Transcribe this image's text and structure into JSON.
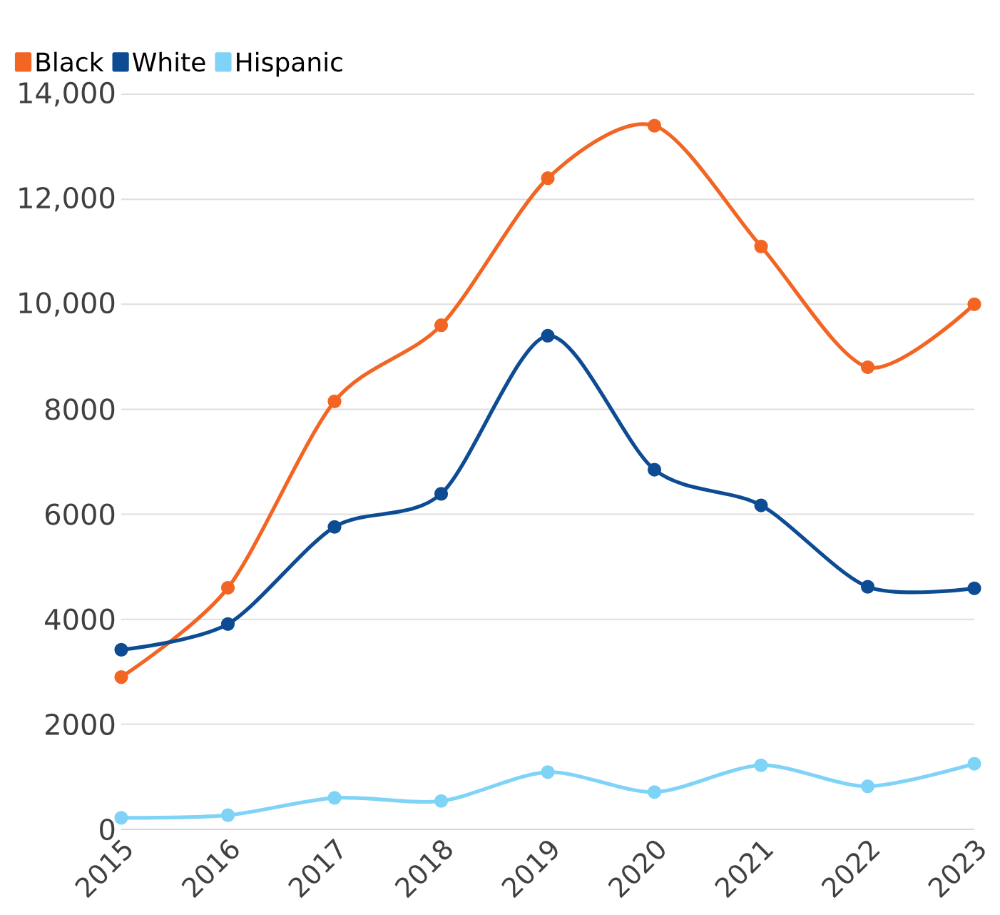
{
  "chart_data": {
    "type": "line",
    "x": [
      2015,
      2016,
      2017,
      2018,
      2019,
      2020,
      2021,
      2022,
      2023
    ],
    "series": [
      {
        "name": "Black",
        "color": "#f26522",
        "values": [
          2900,
          4600,
          8150,
          9600,
          12400,
          13400,
          11100,
          8800,
          10000
        ]
      },
      {
        "name": "White",
        "color": "#0d4c92",
        "values": [
          3420,
          3910,
          5760,
          6390,
          9400,
          6850,
          6170,
          4620,
          4590
        ]
      },
      {
        "name": "Hispanic",
        "color": "#7fd3f7",
        "values": [
          220,
          270,
          600,
          540,
          1090,
          710,
          1220,
          820,
          1250
        ]
      }
    ],
    "xlim": [
      2015,
      2023
    ],
    "xticks": [
      2015,
      2016,
      2017,
      2018,
      2019,
      2020,
      2021,
      2022,
      2023
    ],
    "ylim": [
      0,
      14000
    ],
    "yticks": [
      0,
      2000,
      4000,
      6000,
      8000,
      {
        "value": 10000,
        "label": "10,000"
      },
      {
        "value": 12000,
        "label": "12,000"
      },
      {
        "value": 14000,
        "label": "14,000"
      }
    ],
    "grid": "y",
    "legend": "top left",
    "marker": "circle",
    "line_style": "solid"
  }
}
